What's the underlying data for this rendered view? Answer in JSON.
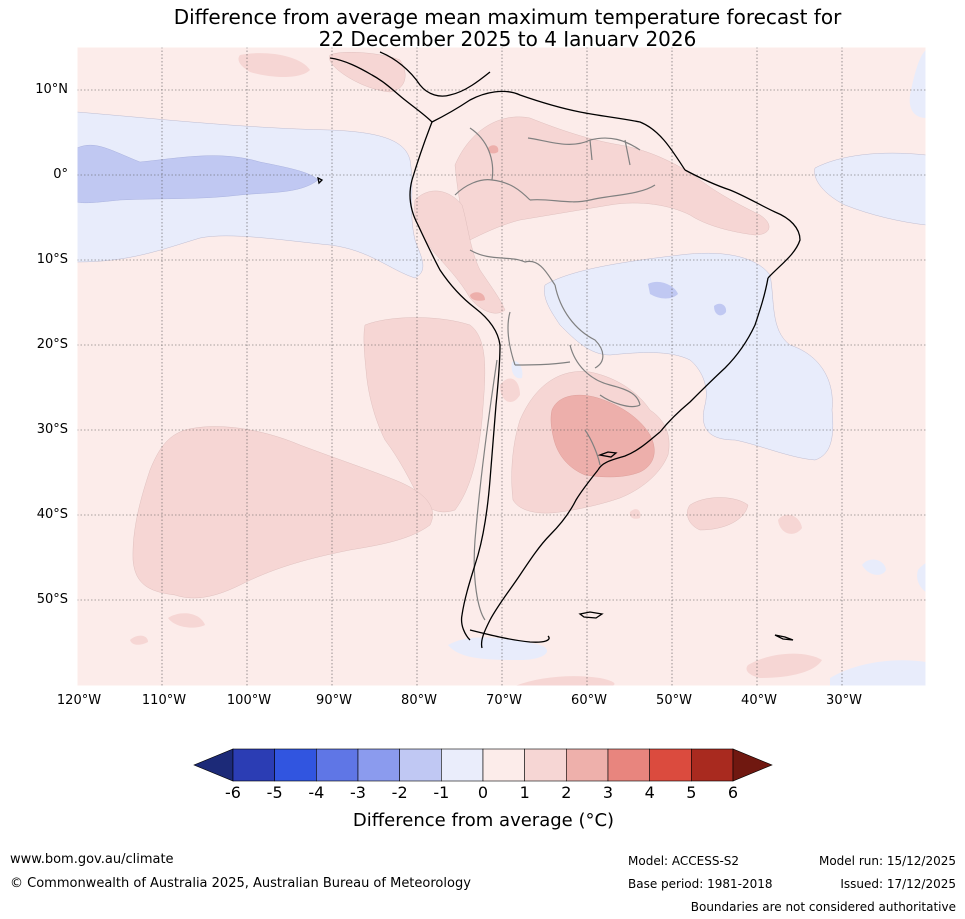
{
  "title": {
    "line1": "Difference from average mean maximum temperature forecast for",
    "line2": "22 December 2025 to 4 January 2026"
  },
  "map": {
    "lat_labels": [
      "10°N",
      "0°",
      "10°S",
      "20°S",
      "30°S",
      "40°S",
      "50°S"
    ],
    "lon_labels": [
      "120°W",
      "110°W",
      "100°W",
      "90°W",
      "80°W",
      "70°W",
      "60°W",
      "50°W",
      "40°W",
      "30°W"
    ],
    "colors": {
      "anom_neg1": "#e8ecfb",
      "anom_neg2": "#c0c8f2",
      "anom_pos1": "#fcecea",
      "anom_pos2": "#f6d6d4",
      "anom_pos3": "#edafab",
      "coast": "#000000",
      "border": "#808080"
    }
  },
  "colorbar": {
    "ticks": [
      "-6",
      "-5",
      "-4",
      "-3",
      "-2",
      "-1",
      "0",
      "1",
      "2",
      "3",
      "4",
      "5",
      "6"
    ],
    "colors": [
      "#1c2a78",
      "#2b3db4",
      "#3155e0",
      "#5f76e6",
      "#8b9bee",
      "#c0c8f3",
      "#eaedfb",
      "#fcecea",
      "#f6d6d4",
      "#eeb0ab",
      "#e8857e",
      "#db4b3e",
      "#a92a1f",
      "#701810"
    ],
    "label": "Difference from average ($^\\circ$C)",
    "label_display": "Difference from average (°C)"
  },
  "footer": {
    "website": "www.bom.gov.au/climate",
    "copyright": "© Commonwealth of Australia 2025, Australian Bureau of Meteorology",
    "model": "Model: ACCESS-S2",
    "base_period": "Base period: 1981-2018",
    "model_run": "Model run: 15/12/2025",
    "issued": "Issued: 17/12/2025",
    "disclaimer": "Boundaries are not considered authoritative"
  }
}
